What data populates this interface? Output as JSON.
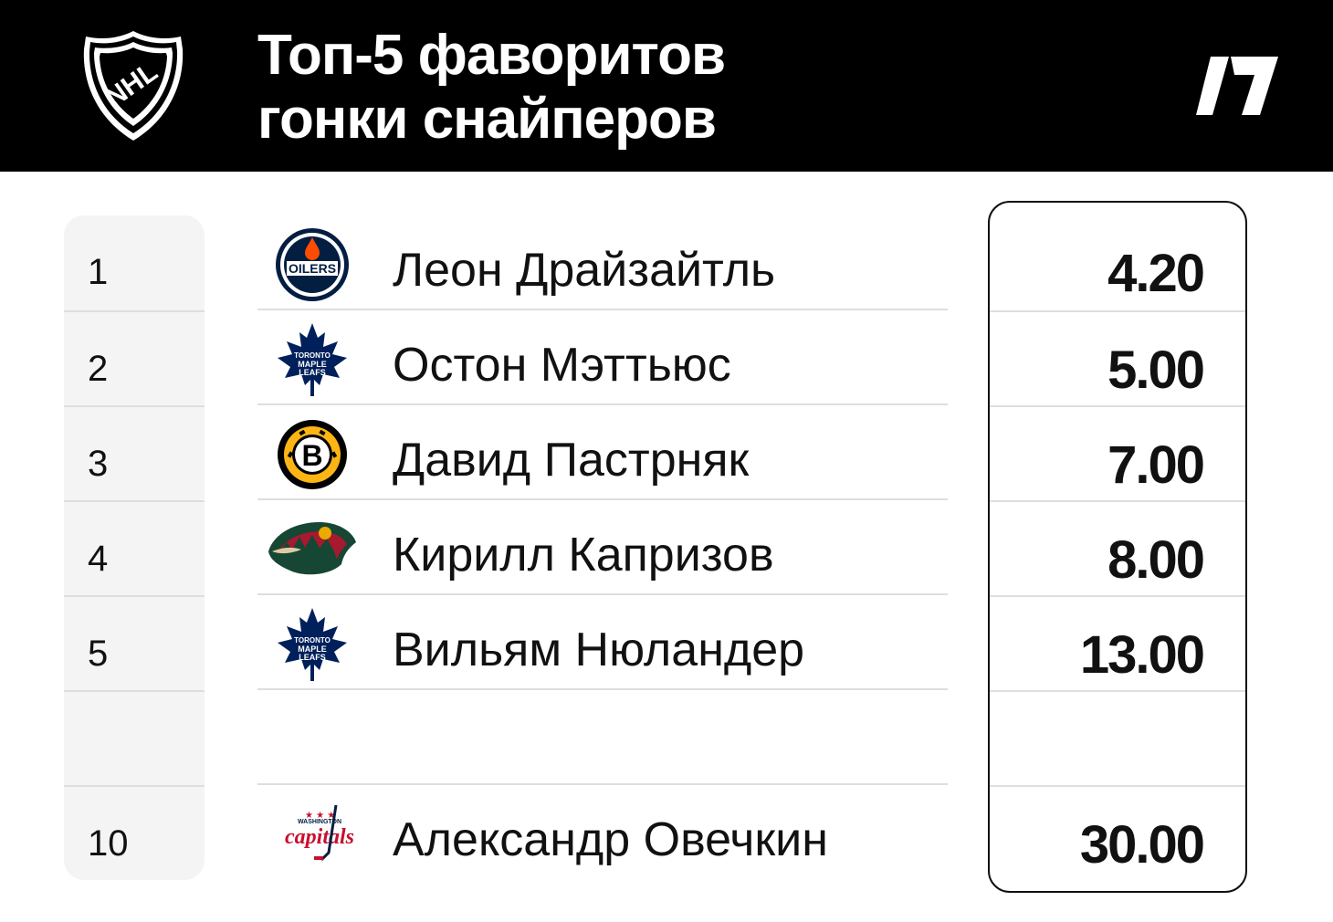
{
  "header": {
    "title_line1": "Топ-5 фаворитов",
    "title_line2": "гонки снайперов",
    "league_logo_icon": "nhl-shield-icon",
    "brand_logo_icon": "brand-slash-logo-icon"
  },
  "rows": [
    {
      "rank": "1",
      "player": "Леон Драйзайтль",
      "team_icon": "oilers-logo-icon",
      "odds": "4.20"
    },
    {
      "rank": "2",
      "player": "Остон Мэттьюс",
      "team_icon": "maple-leafs-logo-icon",
      "odds": "5.00"
    },
    {
      "rank": "3",
      "player": "Давид Пастрняк",
      "team_icon": "bruins-logo-icon",
      "odds": "7.00"
    },
    {
      "rank": "4",
      "player": "Кирилл Капризов",
      "team_icon": "wild-logo-icon",
      "odds": "8.00"
    },
    {
      "rank": "5",
      "player": "Вильям Нюландер",
      "team_icon": "maple-leafs-logo-icon",
      "odds": "13.00"
    },
    {
      "rank": "10",
      "player": "Александр Овечкин",
      "team_icon": "capitals-logo-icon",
      "odds": "30.00"
    }
  ],
  "colors": {
    "header_bg": "#000000",
    "row_bg": "#f4f4f4",
    "divider": "#dedede",
    "oilers_blue": "#041e42",
    "oilers_orange": "#fc4c02",
    "bruins_gold": "#fcb514",
    "wild_green": "#154734",
    "wild_red": "#a6192e",
    "leafs_blue": "#00205b",
    "capitals_red": "#c8102e",
    "capitals_blue": "#041e42"
  }
}
